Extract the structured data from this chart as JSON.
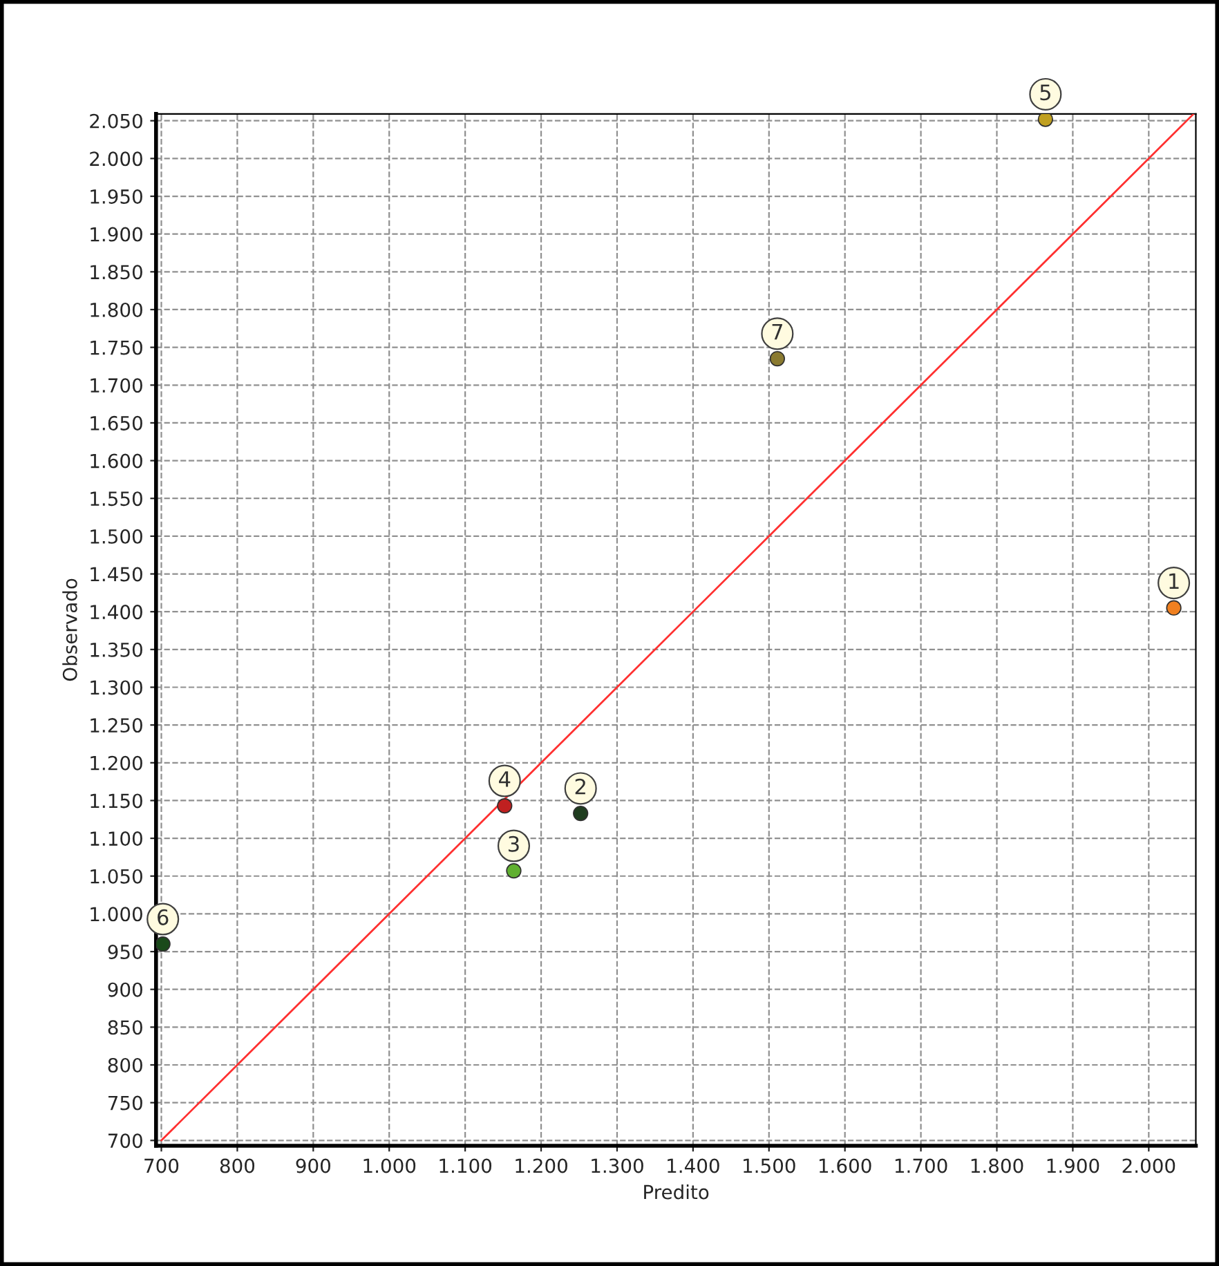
{
  "chart_data": {
    "type": "scatter",
    "xlabel": "Predito",
    "ylabel": "Observado",
    "x": [
      2033,
      1252,
      1164,
      1152,
      1864,
      702,
      1511
    ],
    "series": [
      {
        "marker": "circle",
        "values": [
          1405,
          1133,
          1057,
          1143,
          2052,
          960,
          1735
        ],
        "colors": [
          "#f08020",
          "#1f3d1f",
          "#60b030",
          "#c02020",
          "#c0a020",
          "#1a4a1a",
          "#8a7a30"
        ]
      },
      {
        "type": "line",
        "x": [
          700,
          2059
        ],
        "values": [
          700,
          2059
        ],
        "color": "#ff3030"
      }
    ],
    "annotations": [
      {
        "text": "1",
        "x": 2033,
        "y": 1405
      },
      {
        "text": "2",
        "x": 1252,
        "y": 1133
      },
      {
        "text": "3",
        "x": 1164,
        "y": 1057
      },
      {
        "text": "4",
        "x": 1152,
        "y": 1143
      },
      {
        "text": "5",
        "x": 1864,
        "y": 2052
      },
      {
        "text": "6",
        "x": 702,
        "y": 960
      },
      {
        "text": "7",
        "x": 1511,
        "y": 1735
      }
    ],
    "xlim": [
      693,
      2062
    ],
    "ylim": [
      693,
      2059
    ],
    "xticks": [
      700,
      800,
      900,
      {
        "value": 1000,
        "label": "1.000"
      },
      {
        "value": 1100,
        "label": "1.100"
      },
      {
        "value": 1200,
        "label": "1.200"
      },
      {
        "value": 1300,
        "label": "1.300"
      },
      {
        "value": 1400,
        "label": "1.400"
      },
      {
        "value": 1500,
        "label": "1.500"
      },
      {
        "value": 1600,
        "label": "1.600"
      },
      {
        "value": 1700,
        "label": "1.700"
      },
      {
        "value": 1800,
        "label": "1.800"
      },
      {
        "value": 1900,
        "label": "1.900"
      },
      {
        "value": 2000,
        "label": "2.000"
      }
    ],
    "yticks": [
      700,
      750,
      800,
      850,
      900,
      950,
      {
        "value": 1000,
        "label": "1.000"
      },
      {
        "value": 1050,
        "label": "1.050"
      },
      {
        "value": 1100,
        "label": "1.100"
      },
      {
        "value": 1150,
        "label": "1.150"
      },
      {
        "value": 1200,
        "label": "1.200"
      },
      {
        "value": 1250,
        "label": "1.250"
      },
      {
        "value": 1300,
        "label": "1.300"
      },
      {
        "value": 1350,
        "label": "1.350"
      },
      {
        "value": 1400,
        "label": "1.400"
      },
      {
        "value": 1450,
        "label": "1.450"
      },
      {
        "value": 1500,
        "label": "1.500"
      },
      {
        "value": 1550,
        "label": "1.550"
      },
      {
        "value": 1600,
        "label": "1.600"
      },
      {
        "value": 1650,
        "label": "1.650"
      },
      {
        "value": 1700,
        "label": "1.700"
      },
      {
        "value": 1750,
        "label": "1.750"
      },
      {
        "value": 1800,
        "label": "1.800"
      },
      {
        "value": 1850,
        "label": "1.850"
      },
      {
        "value": 1900,
        "label": "1.900"
      },
      {
        "value": 1950,
        "label": "1.950"
      },
      {
        "value": 2000,
        "label": "2.000"
      },
      {
        "value": 2050,
        "label": "2.050"
      }
    ],
    "grid": true,
    "legend": false
  }
}
